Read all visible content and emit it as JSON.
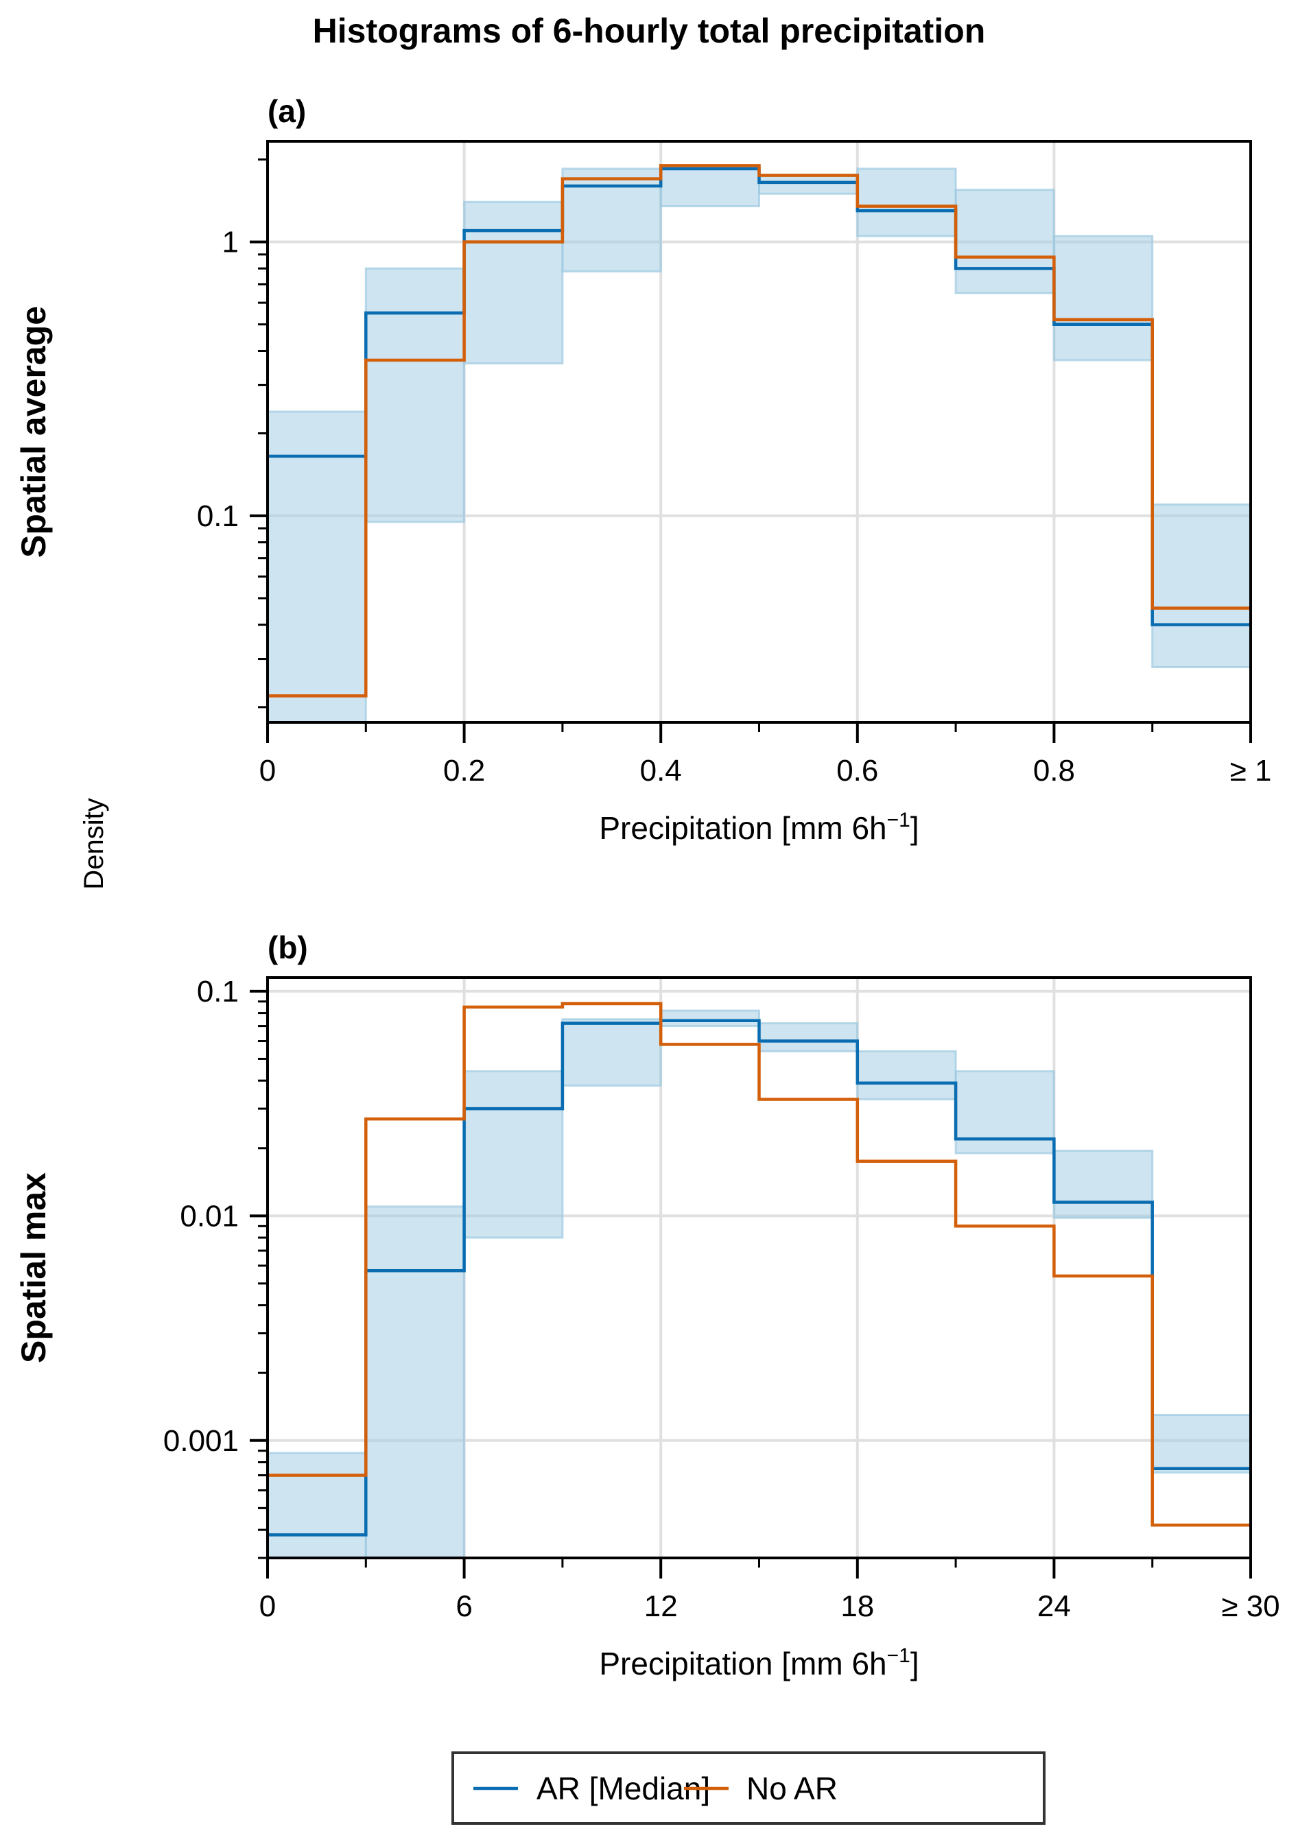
{
  "chart_data": {
    "type": "histogram-step",
    "title": "Histograms of 6-hourly total precipitation",
    "shared_ylabel": "Density",
    "legend": {
      "placement": "bottom-center",
      "entries": [
        {
          "label": "AR [Median]",
          "color": "#0a6db1"
        },
        {
          "label": "No AR",
          "color": "#d35f0a"
        }
      ]
    },
    "band_color": "#9ecae1",
    "panels": [
      {
        "panel_label": "(a)",
        "row_label": "Spatial average",
        "xlabel": "Precipitation [mm 6h",
        "xlabel_sup": "−1",
        "xlabel_end": "]",
        "yscale": "log",
        "ylim": [
          0.0176,
          2.33
        ],
        "xlim": [
          0,
          1
        ],
        "bin_edges": [
          0,
          0.1,
          0.2,
          0.3,
          0.4,
          0.5,
          0.6,
          0.7,
          0.8,
          0.9,
          1.0
        ],
        "xticks": [
          0,
          0.2,
          0.4,
          0.6,
          0.8,
          1.0
        ],
        "xtick_labels": [
          "0",
          "0.2",
          "0.4",
          "0.6",
          "0.8",
          "≥ 1"
        ],
        "yticks": [
          1,
          0.1
        ],
        "ytick_labels": [
          "1",
          "0.1"
        ],
        "series": [
          {
            "name": "AR [Median]",
            "values": [
              0.165,
              0.55,
              1.1,
              1.6,
              1.85,
              1.65,
              1.3,
              0.8,
              0.5,
              0.04
            ]
          },
          {
            "name": "No AR",
            "values": [
              0.022,
              0.37,
              1.0,
              1.7,
              1.9,
              1.75,
              1.35,
              0.88,
              0.52,
              0.046
            ]
          }
        ],
        "band": {
          "upper": [
            0.24,
            0.8,
            1.4,
            1.85,
            1.9,
            1.75,
            1.85,
            1.55,
            1.05,
            0.11
          ],
          "lower": [
            0.017,
            0.095,
            0.36,
            0.78,
            1.35,
            1.5,
            1.05,
            0.65,
            0.37,
            0.028
          ]
        }
      },
      {
        "panel_label": "(b)",
        "row_label": "Spatial max",
        "xlabel": "Precipitation [mm 6h",
        "xlabel_sup": "−1",
        "xlabel_end": "]",
        "yscale": "log",
        "ylim": [
          0.0003,
          0.115
        ],
        "xlim": [
          0,
          30
        ],
        "bin_edges": [
          0,
          3,
          6,
          9,
          12,
          15,
          18,
          21,
          24,
          27,
          30
        ],
        "xticks": [
          0,
          6,
          12,
          18,
          24,
          30
        ],
        "xtick_labels": [
          "0",
          "6",
          "12",
          "18",
          "24",
          "≥ 30"
        ],
        "yticks": [
          0.1,
          0.01,
          0.001
        ],
        "ytick_labels": [
          "0.1",
          "0.01",
          "0.001"
        ],
        "series": [
          {
            "name": "AR [Median]",
            "values": [
              0.00038,
              0.0057,
              0.03,
              0.072,
              0.074,
              0.06,
              0.039,
              0.022,
              0.0115,
              0.00075
            ]
          },
          {
            "name": "No AR",
            "values": [
              0.0007,
              0.027,
              0.085,
              0.088,
              0.058,
              0.033,
              0.0175,
              0.009,
              0.0054,
              0.00042
            ]
          }
        ],
        "band": {
          "upper": [
            0.00088,
            0.011,
            0.044,
            0.075,
            0.082,
            0.072,
            0.054,
            0.044,
            0.0195,
            0.0013
          ],
          "lower": [
            0.0003,
            0.0003,
            0.008,
            0.038,
            0.07,
            0.054,
            0.033,
            0.019,
            0.0098,
            0.00072
          ]
        }
      }
    ]
  }
}
